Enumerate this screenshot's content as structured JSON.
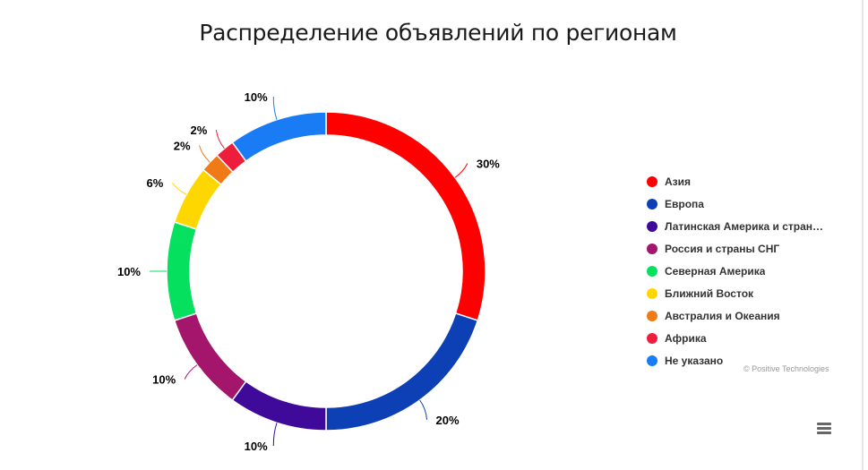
{
  "title": "Распределение объявлений по регионам",
  "credits": "© Positive Technologies",
  "menu_icon": "hamburger-menu-icon",
  "chart_data": {
    "type": "pie",
    "variant": "donut",
    "title": "Распределение объявлений по регионам",
    "legend_position": "right",
    "series": [
      {
        "name": "Азия",
        "value": 30,
        "label": "30%",
        "color": "#ff0000"
      },
      {
        "name": "Европа",
        "value": 20,
        "label": "20%",
        "color": "#0d3fb5"
      },
      {
        "name": "Латинская Америка и стран…",
        "value": 10,
        "label": "10%",
        "color": "#3f0a99"
      },
      {
        "name": "Россия и страны СНГ",
        "value": 10,
        "label": "10%",
        "color": "#a3166b"
      },
      {
        "name": "Северная Америка",
        "value": 10,
        "label": "10%",
        "color": "#05e05f"
      },
      {
        "name": "Ближний Восток",
        "value": 6,
        "label": "6%",
        "color": "#ffd700"
      },
      {
        "name": "Австралия и Океания",
        "value": 2,
        "label": "2%",
        "color": "#ef7a16"
      },
      {
        "name": "Африка",
        "value": 2,
        "label": "2%",
        "color": "#ee1d3b"
      },
      {
        "name": "Не указано",
        "value": 10,
        "label": "10%",
        "color": "#1a7cf5"
      }
    ]
  }
}
